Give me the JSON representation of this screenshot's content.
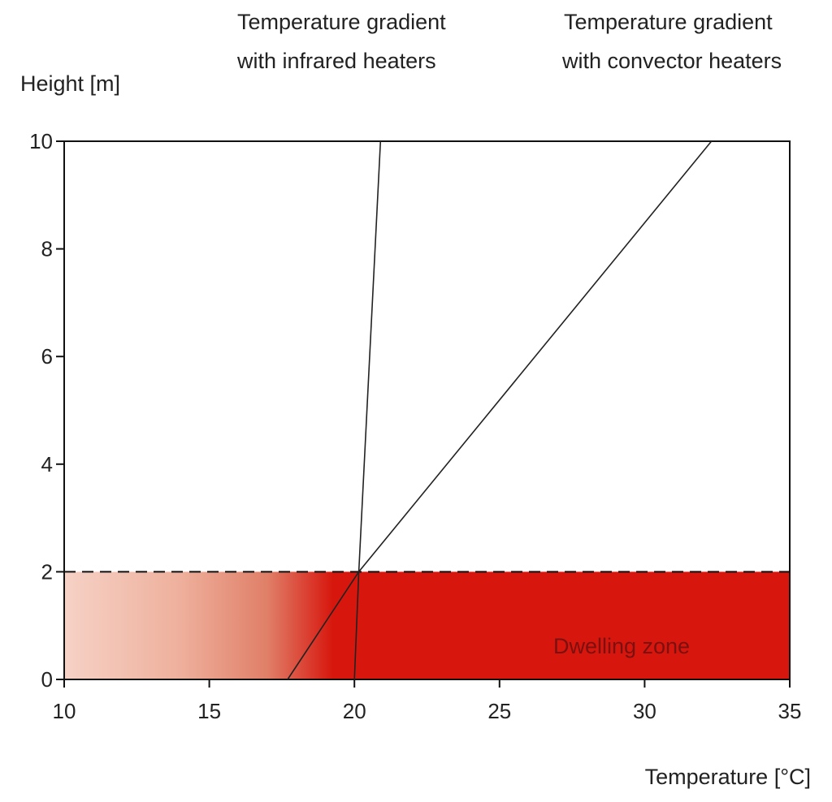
{
  "chart_data": {
    "type": "line",
    "title": "",
    "xlabel": "Temperature [°C]",
    "ylabel": "Height [m]",
    "xlim": [
      10,
      35
    ],
    "ylim": [
      0,
      10
    ],
    "x_ticks": [
      10,
      15,
      20,
      25,
      30,
      35
    ],
    "y_ticks": [
      0,
      2,
      4,
      6,
      8,
      10
    ],
    "grid": false,
    "series": [
      {
        "x": [
          20.0,
          20.15,
          20.9
        ],
        "y": [
          0,
          2,
          10
        ],
        "color": "#222222"
      },
      {
        "x": [
          17.7,
          20.15,
          32.3
        ],
        "y": [
          0,
          2,
          10
        ],
        "color": "#222222"
      }
    ],
    "annotations": [
      {
        "text_lines": [
          "Temperature gradient",
          "with infrared heaters"
        ],
        "points_to_series": 0
      },
      {
        "text_lines": [
          "Temperature gradient",
          "with convector heaters"
        ],
        "points_to_series": 1
      }
    ],
    "zone": {
      "label": "Dwelling zone",
      "y_range": [
        0,
        2
      ],
      "x_range": [
        10,
        35
      ],
      "gradient_from": "#f6d2c6",
      "gradient_to": "#d7170e"
    }
  }
}
